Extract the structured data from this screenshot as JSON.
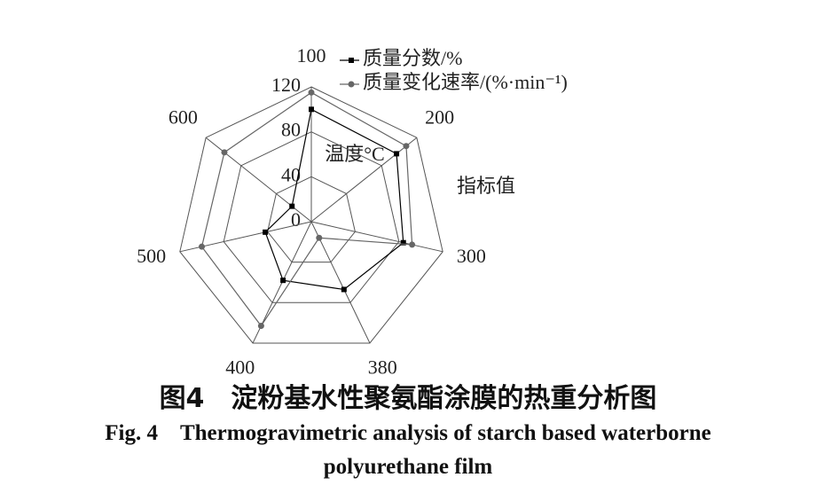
{
  "chart_data": {
    "type": "radar",
    "categories": [
      "100",
      "200",
      "300",
      "380",
      "400",
      "500",
      "600"
    ],
    "category_axis_title": "温度°C",
    "value_axis_title": "指标值",
    "ylim": [
      0,
      120
    ],
    "yticks": [
      0,
      40,
      80,
      120
    ],
    "grid": true,
    "series": [
      {
        "name": "质量分数/%",
        "color": "#000000",
        "marker": "square",
        "values": [
          100,
          97,
          84,
          67,
          58,
          42,
          22
        ]
      },
      {
        "name": "质量变化速率/(%·min⁻¹)",
        "color": "#666666",
        "marker": "circle",
        "values": [
          115,
          108,
          92,
          16,
          103,
          100,
          99
        ]
      }
    ]
  },
  "caption": {
    "cn": "图4　淀粉基水性聚氨酯涂膜的热重分析图",
    "en": "Fig. 4　Thermogravimetric analysis of starch based waterborne polyurethane film"
  }
}
